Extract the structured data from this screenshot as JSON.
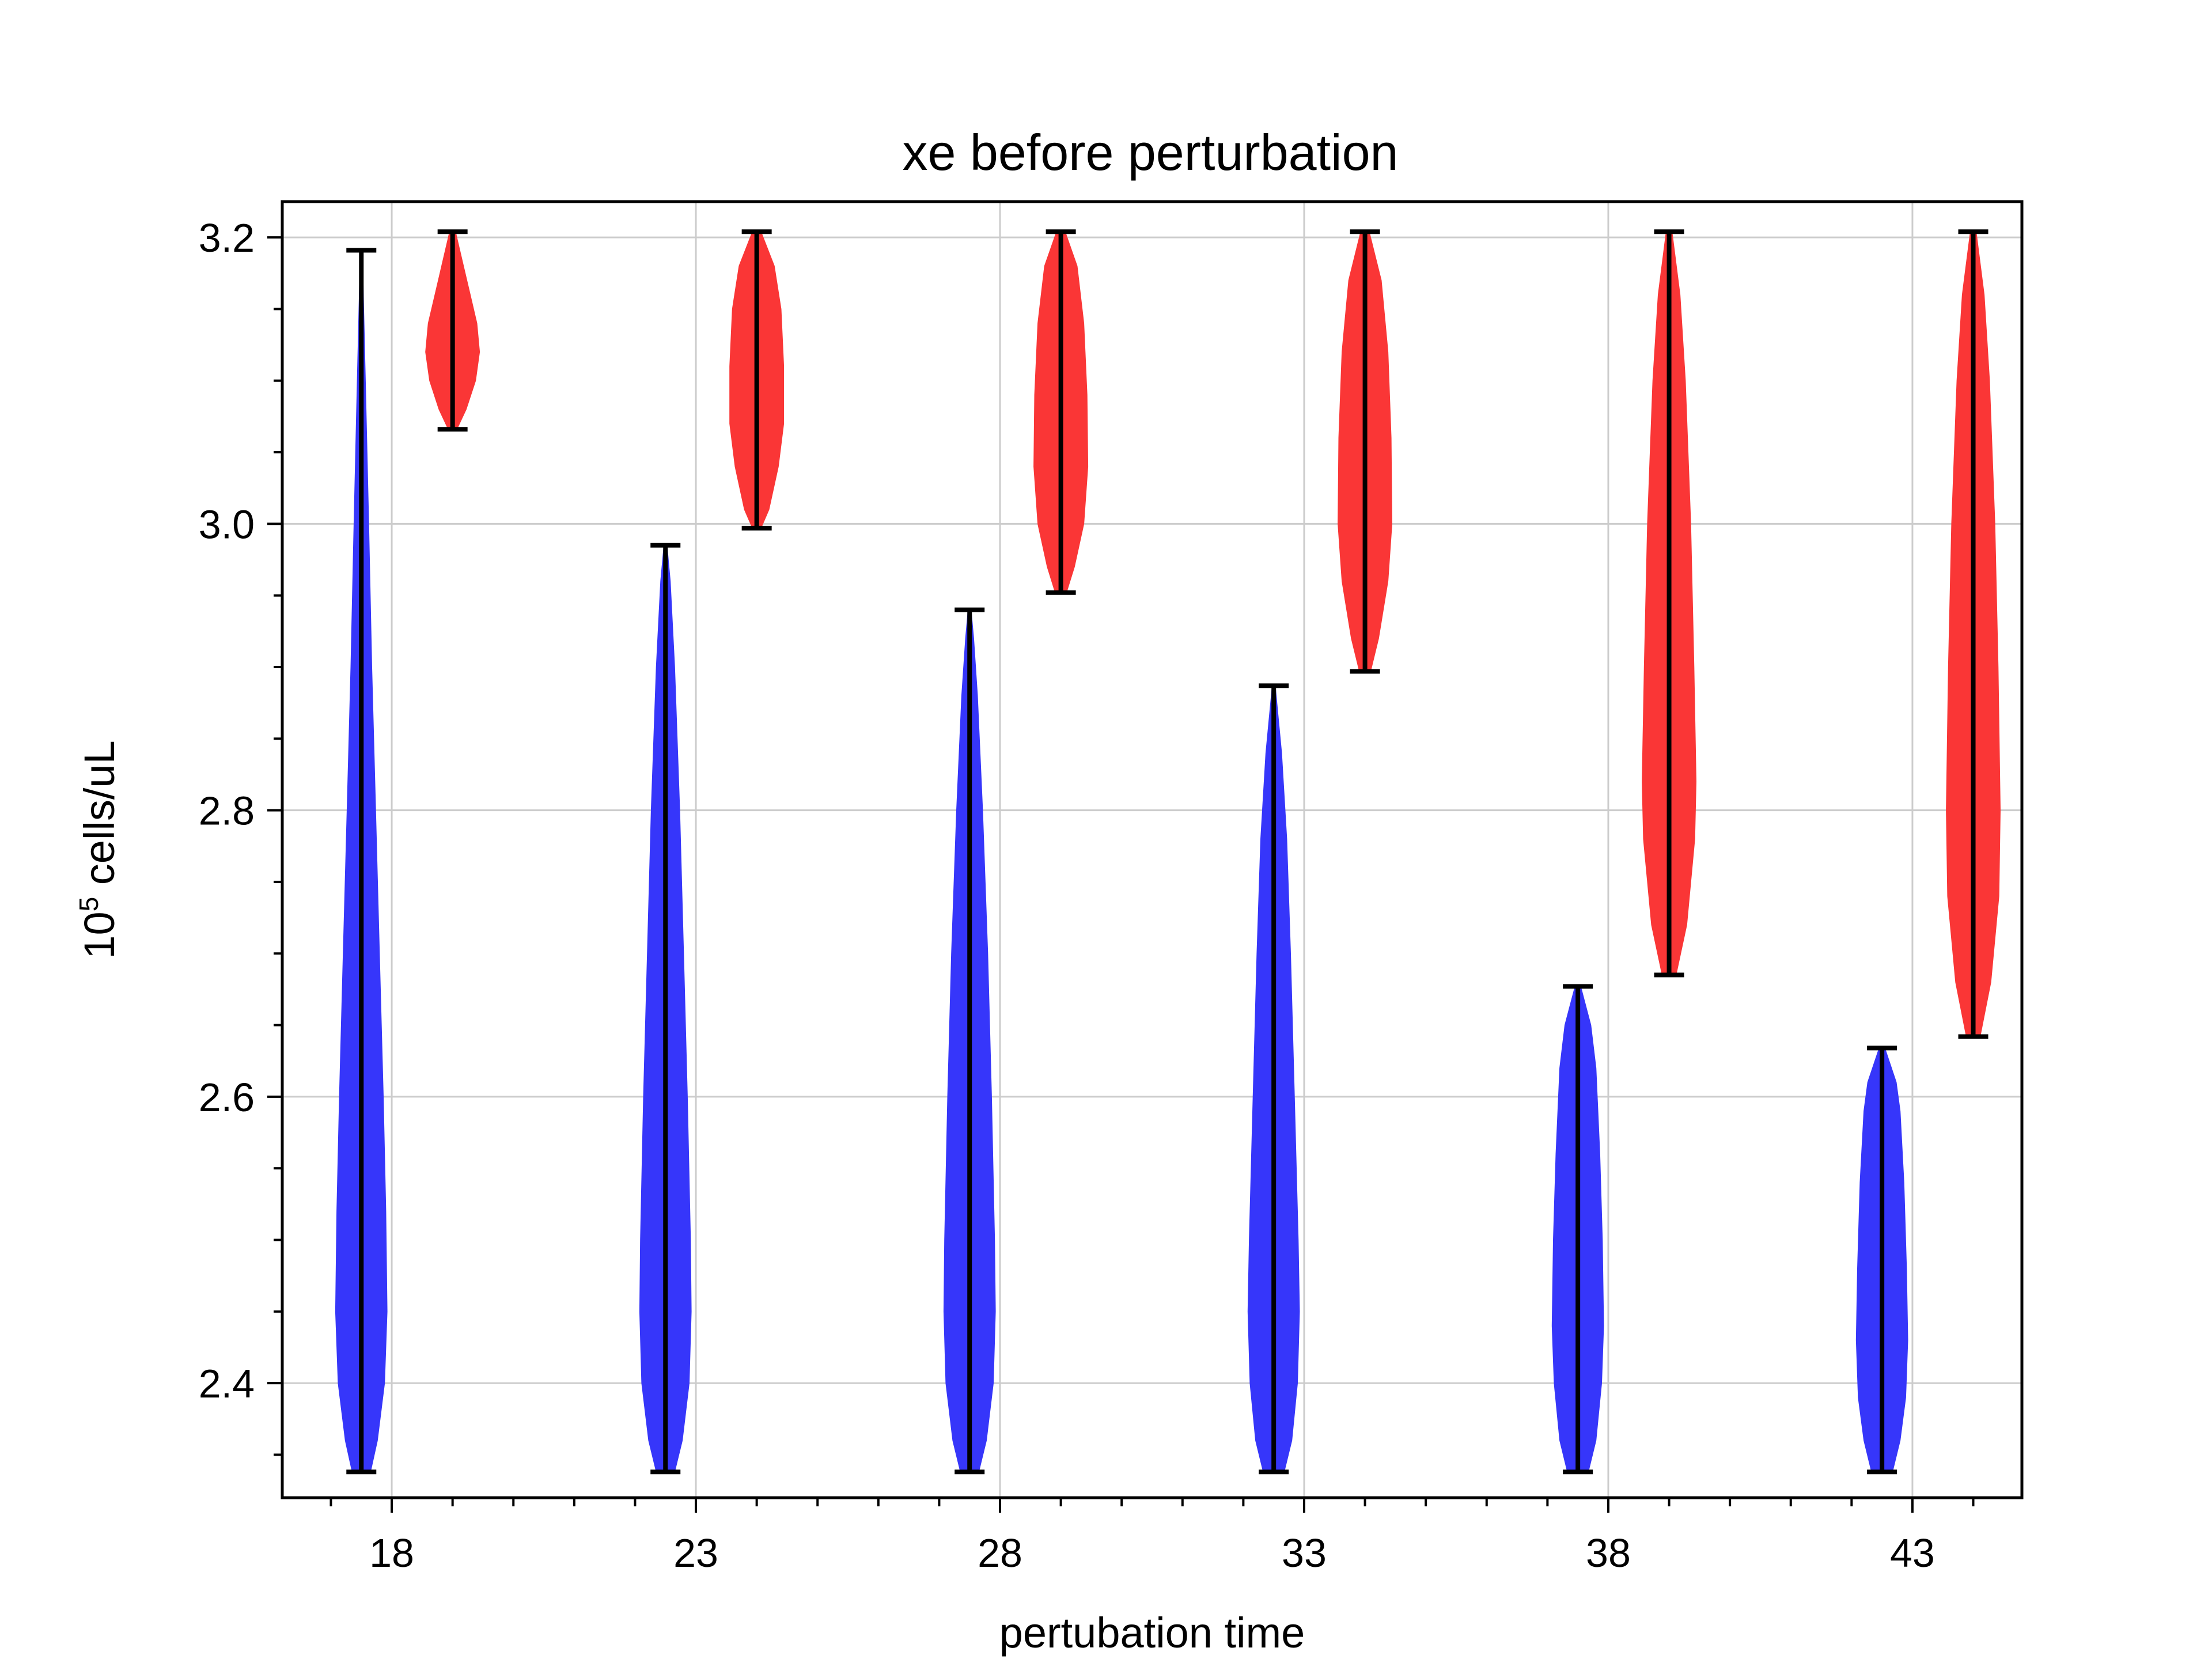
{
  "chart_data": {
    "type": "violin",
    "title": "xe before perturbation",
    "xlabel": "pertubation time",
    "ylabel_base": "10",
    "ylabel_exp": "5",
    "ylabel_rest": " cells/uL",
    "xlim": [
      16.2,
      44.8
    ],
    "ylim": [
      2.32,
      3.225
    ],
    "xticks": [
      18,
      23,
      28,
      33,
      38,
      43
    ],
    "xtick_labels": [
      "18",
      "23",
      "28",
      "33",
      "38",
      "43"
    ],
    "yticks": [
      2.4,
      2.6,
      2.8,
      3.0,
      3.2
    ],
    "ytick_labels": [
      "2.4",
      "2.6",
      "2.8",
      "3.0",
      "3.2"
    ],
    "grid": true,
    "colors": {
      "blue": "#3636fa",
      "red": "#fa3636"
    },
    "violins": [
      {
        "x": 17.5,
        "color": "blue",
        "min": 2.338,
        "max": 3.191,
        "max_halfwidth": 0.42,
        "profile": [
          [
            2.338,
            0.35
          ],
          [
            2.36,
            0.62
          ],
          [
            2.4,
            0.9
          ],
          [
            2.45,
            1.0
          ],
          [
            2.52,
            0.95
          ],
          [
            2.6,
            0.85
          ],
          [
            2.7,
            0.7
          ],
          [
            2.8,
            0.55
          ],
          [
            2.9,
            0.4
          ],
          [
            3.0,
            0.28
          ],
          [
            3.1,
            0.15
          ],
          [
            3.191,
            0.03
          ]
        ]
      },
      {
        "x": 19.0,
        "color": "red",
        "min": 3.066,
        "max": 3.204,
        "max_halfwidth": 0.44,
        "profile": [
          [
            3.066,
            0.15
          ],
          [
            3.08,
            0.5
          ],
          [
            3.1,
            0.85
          ],
          [
            3.12,
            1.0
          ],
          [
            3.14,
            0.9
          ],
          [
            3.16,
            0.65
          ],
          [
            3.18,
            0.4
          ],
          [
            3.204,
            0.1
          ]
        ]
      },
      {
        "x": 22.5,
        "color": "blue",
        "min": 2.338,
        "max": 2.985,
        "max_halfwidth": 0.42,
        "profile": [
          [
            2.338,
            0.35
          ],
          [
            2.36,
            0.65
          ],
          [
            2.4,
            0.92
          ],
          [
            2.45,
            1.0
          ],
          [
            2.5,
            0.97
          ],
          [
            2.6,
            0.85
          ],
          [
            2.7,
            0.7
          ],
          [
            2.8,
            0.55
          ],
          [
            2.9,
            0.35
          ],
          [
            2.96,
            0.18
          ],
          [
            2.985,
            0.05
          ]
        ]
      },
      {
        "x": 24.0,
        "color": "red",
        "min": 2.997,
        "max": 3.204,
        "max_halfwidth": 0.44,
        "profile": [
          [
            2.997,
            0.15
          ],
          [
            3.01,
            0.45
          ],
          [
            3.04,
            0.8
          ],
          [
            3.07,
            1.0
          ],
          [
            3.11,
            1.0
          ],
          [
            3.15,
            0.9
          ],
          [
            3.18,
            0.65
          ],
          [
            3.204,
            0.15
          ]
        ]
      },
      {
        "x": 27.5,
        "color": "blue",
        "min": 2.338,
        "max": 2.94,
        "max_halfwidth": 0.42,
        "profile": [
          [
            2.338,
            0.35
          ],
          [
            2.36,
            0.65
          ],
          [
            2.4,
            0.92
          ],
          [
            2.45,
            1.0
          ],
          [
            2.5,
            0.97
          ],
          [
            2.6,
            0.85
          ],
          [
            2.7,
            0.7
          ],
          [
            2.8,
            0.5
          ],
          [
            2.88,
            0.3
          ],
          [
            2.92,
            0.15
          ],
          [
            2.94,
            0.05
          ]
        ]
      },
      {
        "x": 29.0,
        "color": "red",
        "min": 2.952,
        "max": 3.204,
        "max_halfwidth": 0.44,
        "profile": [
          [
            2.952,
            0.2
          ],
          [
            2.97,
            0.5
          ],
          [
            3.0,
            0.85
          ],
          [
            3.04,
            1.0
          ],
          [
            3.09,
            0.97
          ],
          [
            3.14,
            0.85
          ],
          [
            3.18,
            0.6
          ],
          [
            3.204,
            0.15
          ]
        ]
      },
      {
        "x": 32.5,
        "color": "blue",
        "min": 2.338,
        "max": 2.887,
        "max_halfwidth": 0.42,
        "profile": [
          [
            2.338,
            0.4
          ],
          [
            2.36,
            0.7
          ],
          [
            2.4,
            0.92
          ],
          [
            2.45,
            1.0
          ],
          [
            2.5,
            0.95
          ],
          [
            2.6,
            0.8
          ],
          [
            2.7,
            0.65
          ],
          [
            2.78,
            0.5
          ],
          [
            2.84,
            0.3
          ],
          [
            2.887,
            0.05
          ]
        ]
      },
      {
        "x": 34.0,
        "color": "red",
        "min": 2.897,
        "max": 3.204,
        "max_halfwidth": 0.44,
        "profile": [
          [
            2.897,
            0.2
          ],
          [
            2.92,
            0.5
          ],
          [
            2.96,
            0.85
          ],
          [
            3.0,
            1.0
          ],
          [
            3.06,
            0.97
          ],
          [
            3.12,
            0.85
          ],
          [
            3.17,
            0.6
          ],
          [
            3.204,
            0.15
          ]
        ]
      },
      {
        "x": 37.5,
        "color": "blue",
        "min": 2.338,
        "max": 2.677,
        "max_halfwidth": 0.42,
        "profile": [
          [
            2.338,
            0.4
          ],
          [
            2.36,
            0.7
          ],
          [
            2.4,
            0.92
          ],
          [
            2.44,
            1.0
          ],
          [
            2.5,
            0.95
          ],
          [
            2.56,
            0.85
          ],
          [
            2.62,
            0.7
          ],
          [
            2.65,
            0.5
          ],
          [
            2.677,
            0.1
          ]
        ]
      },
      {
        "x": 39.0,
        "color": "red",
        "min": 2.685,
        "max": 3.204,
        "max_halfwidth": 0.44,
        "profile": [
          [
            2.685,
            0.25
          ],
          [
            2.72,
            0.65
          ],
          [
            2.78,
            0.95
          ],
          [
            2.82,
            1.0
          ],
          [
            2.9,
            0.92
          ],
          [
            3.0,
            0.8
          ],
          [
            3.1,
            0.6
          ],
          [
            3.16,
            0.4
          ],
          [
            3.204,
            0.1
          ]
        ]
      },
      {
        "x": 42.5,
        "color": "blue",
        "min": 2.338,
        "max": 2.634,
        "max_halfwidth": 0.42,
        "profile": [
          [
            2.338,
            0.4
          ],
          [
            2.36,
            0.7
          ],
          [
            2.39,
            0.92
          ],
          [
            2.43,
            1.0
          ],
          [
            2.48,
            0.95
          ],
          [
            2.54,
            0.85
          ],
          [
            2.59,
            0.7
          ],
          [
            2.61,
            0.55
          ],
          [
            2.634,
            0.1
          ]
        ]
      },
      {
        "x": 44.0,
        "color": "red",
        "min": 2.642,
        "max": 3.204,
        "max_halfwidth": 0.44,
        "profile": [
          [
            2.642,
            0.25
          ],
          [
            2.68,
            0.65
          ],
          [
            2.74,
            0.95
          ],
          [
            2.8,
            1.0
          ],
          [
            2.9,
            0.92
          ],
          [
            3.0,
            0.8
          ],
          [
            3.1,
            0.6
          ],
          [
            3.16,
            0.4
          ],
          [
            3.204,
            0.1
          ]
        ]
      }
    ]
  }
}
